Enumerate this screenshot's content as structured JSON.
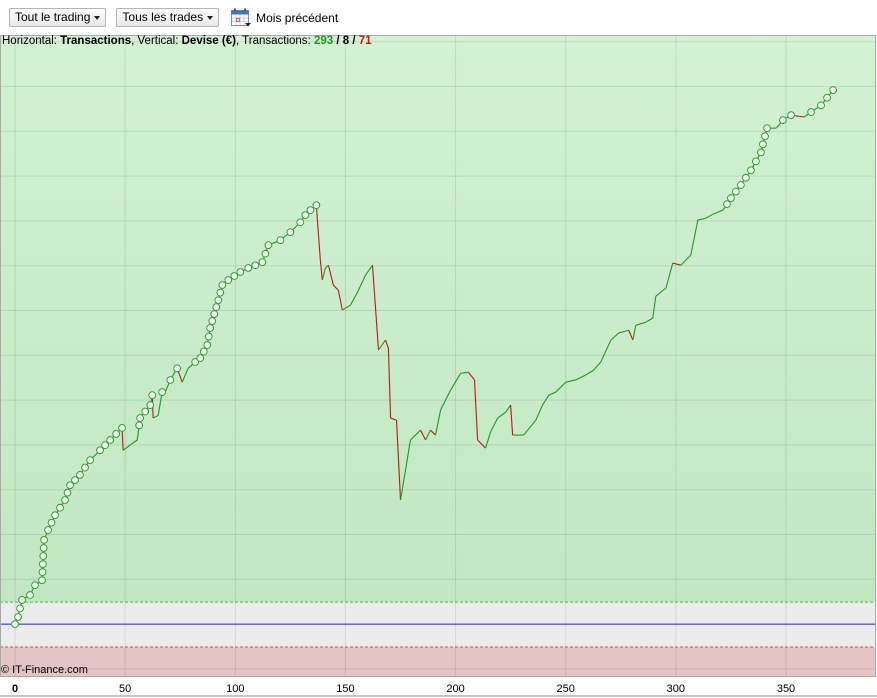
{
  "toolbar": {
    "scope_dropdown": "Tout le trading",
    "trades_dropdown": "Tous les trades",
    "period_label": "Mois précédent",
    "calendar_icon": "calendar-icon"
  },
  "subtitle": {
    "h_label": "Horizontal: ",
    "h_value": "Transactions",
    "v_label": ", Vertical: ",
    "v_value": "Devise (€)",
    "t_label": ", Transactions: ",
    "wins": "293",
    "sep1": " / ",
    "neutral": "8",
    "sep2": " / ",
    "losses": "71"
  },
  "credit": "© IT-Finance.com",
  "colors": {
    "up": "#1f9a1f",
    "down": "#c01818",
    "baseline": "#2222dd",
    "profit_zone": "#c6e9c6",
    "loss_zone": "#e4c4c4",
    "neutral_zone": "#ececec"
  },
  "chart_data": {
    "type": "line",
    "title": "",
    "xlabel": "Transactions",
    "ylabel": "Devise (€)",
    "xlim": [
      0,
      391
    ],
    "ylim": [
      -11.8,
      131.5
    ],
    "x_ticks": [
      "0",
      "50",
      "100",
      "150",
      "200",
      "250",
      "300",
      "350"
    ],
    "x_tick_values": [
      0,
      50,
      100,
      150,
      200,
      250,
      300,
      350
    ],
    "y_grid_step": 10,
    "baseline": 0,
    "profit_threshold": 4.9,
    "loss_threshold": -5.1,
    "grid": true,
    "points": [
      [
        0,
        0
      ],
      [
        1.4,
        1.6
      ],
      [
        3.2,
        5.4
      ],
      [
        6.8,
        6.5
      ],
      [
        9.1,
        8.7
      ],
      [
        12.3,
        9.8
      ],
      [
        13.2,
        18.8
      ],
      [
        15,
        21
      ],
      [
        18.2,
        24.3
      ],
      [
        22.7,
        27.7
      ],
      [
        25,
        31
      ],
      [
        29.5,
        33.3
      ],
      [
        34.1,
        36.6
      ],
      [
        38.6,
        38.8
      ],
      [
        43.2,
        41.1
      ],
      [
        48.6,
        43.8
      ],
      [
        49.1,
        38.8
      ],
      [
        52.3,
        40
      ],
      [
        55.5,
        41.1
      ],
      [
        56.8,
        46
      ],
      [
        61.4,
        48.9
      ],
      [
        62.3,
        51.1
      ],
      [
        62.7,
        46
      ],
      [
        65,
        46.6
      ],
      [
        66.8,
        51.8
      ],
      [
        68.2,
        51.8
      ],
      [
        70.5,
        54.5
      ],
      [
        73.6,
        57.1
      ],
      [
        75.9,
        54
      ],
      [
        78.6,
        57.1
      ],
      [
        81.8,
        58.5
      ],
      [
        84.1,
        59.4
      ],
      [
        87.3,
        62.3
      ],
      [
        88.6,
        66.1
      ],
      [
        92.3,
        72.3
      ],
      [
        94.1,
        75.7
      ],
      [
        96.8,
        76.8
      ],
      [
        102.3,
        78.6
      ],
      [
        105.9,
        79.5
      ],
      [
        109.1,
        80.1
      ],
      [
        112.3,
        80.8
      ],
      [
        115,
        84.6
      ],
      [
        120.5,
        85.7
      ],
      [
        125,
        87.5
      ],
      [
        129.5,
        89.7
      ],
      [
        131.8,
        91.3
      ],
      [
        134.1,
        92.4
      ],
      [
        136.8,
        93.5
      ],
      [
        138.6,
        81.3
      ],
      [
        139.5,
        76.8
      ],
      [
        140.9,
        79.5
      ],
      [
        142.3,
        80.1
      ],
      [
        144.5,
        75.7
      ],
      [
        146.8,
        74.5
      ],
      [
        148.6,
        70.1
      ],
      [
        152.3,
        71.2
      ],
      [
        155.9,
        74.5
      ],
      [
        159.1,
        77.9
      ],
      [
        162.3,
        80.1
      ],
      [
        165,
        61.2
      ],
      [
        168.2,
        63.4
      ],
      [
        169.5,
        61.6
      ],
      [
        170.5,
        46
      ],
      [
        173.2,
        45.5
      ],
      [
        175,
        27.7
      ],
      [
        177.3,
        34.4
      ],
      [
        179.5,
        41.1
      ],
      [
        181.8,
        42.2
      ],
      [
        184.1,
        43.3
      ],
      [
        186.4,
        41.1
      ],
      [
        188.6,
        43.3
      ],
      [
        190.9,
        42.2
      ],
      [
        193.2,
        47.8
      ],
      [
        197.7,
        52.2
      ],
      [
        202.3,
        56
      ],
      [
        205.9,
        56.2
      ],
      [
        208.6,
        54.5
      ],
      [
        210,
        41.1
      ],
      [
        213.6,
        39.3
      ],
      [
        215.9,
        42.9
      ],
      [
        219.1,
        46
      ],
      [
        222.7,
        47.3
      ],
      [
        225,
        48.9
      ],
      [
        225.9,
        42.2
      ],
      [
        228.6,
        42.2
      ],
      [
        230.9,
        42.2
      ],
      [
        236.4,
        45.5
      ],
      [
        239.5,
        48.9
      ],
      [
        242.3,
        51.1
      ],
      [
        245.5,
        51.8
      ],
      [
        250,
        54
      ],
      [
        254.5,
        54.5
      ],
      [
        259.1,
        55.6
      ],
      [
        262.7,
        56.7
      ],
      [
        265.9,
        58.5
      ],
      [
        270.5,
        63.4
      ],
      [
        274.1,
        65
      ],
      [
        278.6,
        65.6
      ],
      [
        280.5,
        63.4
      ],
      [
        281.8,
        66.7
      ],
      [
        286.4,
        67.4
      ],
      [
        289.5,
        68.3
      ],
      [
        290.9,
        73.2
      ],
      [
        295.5,
        75
      ],
      [
        298.6,
        80.6
      ],
      [
        302.3,
        80.1
      ],
      [
        306.8,
        82.4
      ],
      [
        310,
        90.2
      ],
      [
        313.6,
        90.6
      ],
      [
        316.8,
        91.5
      ],
      [
        321.4,
        92.4
      ],
      [
        325,
        95.1
      ],
      [
        329.5,
        98
      ],
      [
        334.1,
        101.3
      ],
      [
        338.6,
        105.3
      ],
      [
        341.4,
        110.7
      ],
      [
        345.5,
        110.7
      ],
      [
        348.6,
        112.5
      ],
      [
        352.3,
        113.6
      ],
      [
        358.2,
        113.2
      ],
      [
        361.4,
        114.3
      ],
      [
        365.9,
        115.8
      ],
      [
        371.4,
        119.2
      ]
    ]
  }
}
